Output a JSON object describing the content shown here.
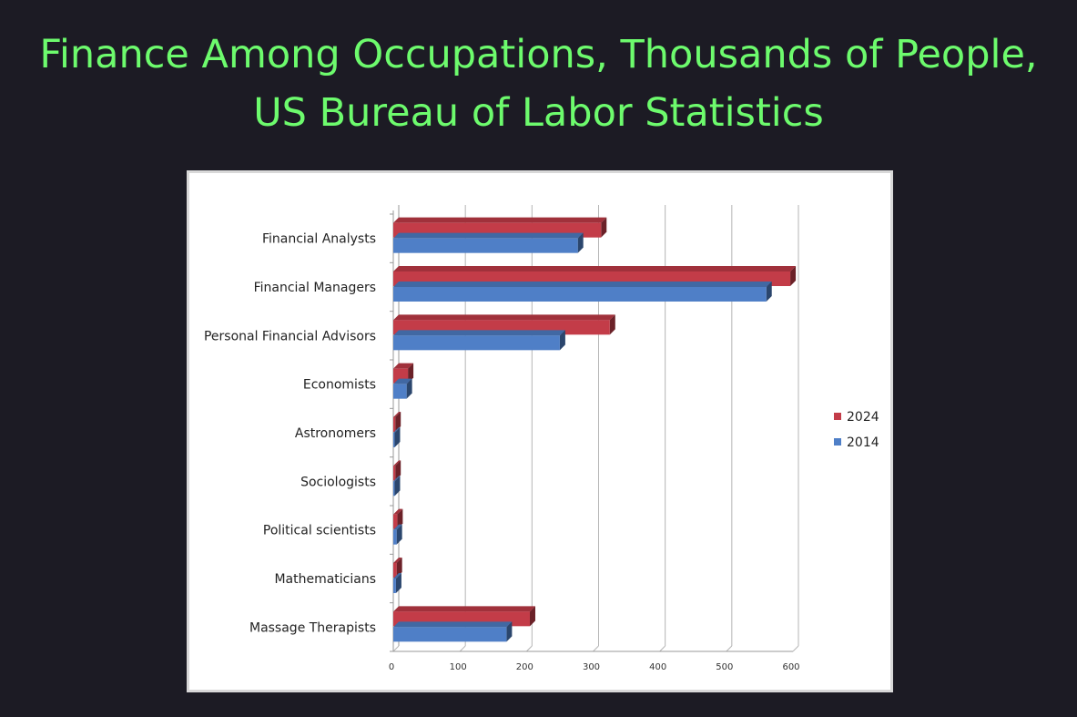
{
  "slide": {
    "title_line1": "Finance Among Occupations, Thousands of People,",
    "title_line2": "US Bureau of Labor Statistics"
  },
  "colors": {
    "title": "#6dfb6d",
    "background": "#1c1b24",
    "series_2024": "#c33c48",
    "series_2014": "#4f7fc7"
  },
  "chart_data": {
    "type": "bar",
    "orientation": "horizontal",
    "style": "3d",
    "categories": [
      "Financial Analysts",
      "Financial Managers",
      "Personal Financial Advisors",
      "Economists",
      "Astronomers",
      "Sociologists",
      "Political scientists",
      "Mathematicians",
      "Massage Therapists"
    ],
    "series": [
      {
        "name": "2024",
        "color": "#c33c48",
        "values": [
          312,
          596,
          325,
          22,
          3,
          3,
          6,
          5,
          205
        ]
      },
      {
        "name": "2014",
        "color": "#4f7fc7",
        "values": [
          277,
          560,
          250,
          20,
          2,
          2,
          5,
          4,
          170
        ]
      }
    ],
    "xticks": [
      "0",
      "100",
      "200",
      "300",
      "400",
      "500",
      "600"
    ],
    "xlim": [
      0,
      600
    ],
    "grid": true,
    "legend": "right",
    "title": "",
    "xlabel": "",
    "ylabel": ""
  }
}
